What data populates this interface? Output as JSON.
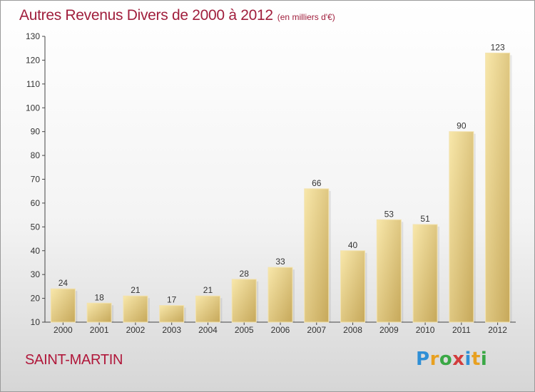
{
  "title": "Autres Revenus Divers de 2000 à 2012",
  "subtitle": "(en milliers d'€)",
  "commune": "SAINT-MARTIN",
  "logo": {
    "letters": [
      "P",
      "r",
      "o",
      "x",
      "i",
      "t",
      "i"
    ]
  },
  "colors": {
    "title": "#a01e3c",
    "bar_light": "#f6e2a0",
    "bar_dark": "#c8aa5e",
    "axis": "#333333"
  },
  "chart_data": {
    "type": "bar",
    "categories": [
      "2000",
      "2001",
      "2002",
      "2003",
      "2004",
      "2005",
      "2006",
      "2007",
      "2008",
      "2009",
      "2010",
      "2011",
      "2012"
    ],
    "values": [
      24,
      18,
      21,
      17,
      21,
      28,
      33,
      66,
      40,
      53,
      51,
      90,
      123
    ],
    "title": "Autres Revenus Divers de 2000 à 2012",
    "xlabel": "",
    "ylabel": "",
    "ylim": [
      10,
      130
    ],
    "yticks": [
      10,
      20,
      30,
      40,
      50,
      60,
      70,
      80,
      90,
      100,
      110,
      120,
      130
    ],
    "grid": false,
    "data_labels": true,
    "legend": "none"
  }
}
